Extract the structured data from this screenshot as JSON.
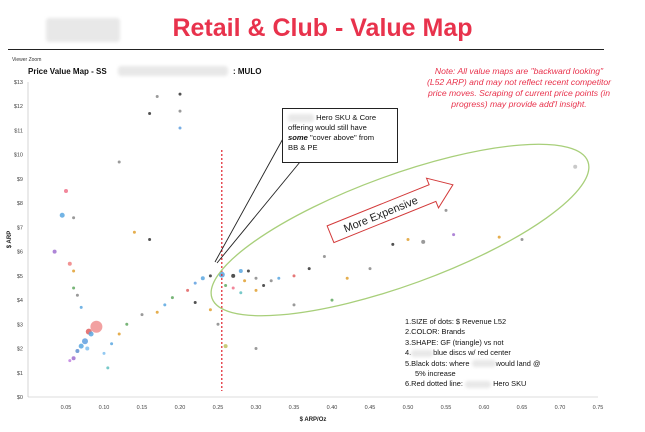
{
  "slide": {
    "title": "Retail & Club - Value Map"
  },
  "viewer": {
    "label": "Viewer Zoom"
  },
  "chart_header": {
    "title": "Price Value Map - SS",
    "subtitle": ": MULO"
  },
  "note": {
    "lines": [
      "Note: All value maps are \"backward looking\"",
      "(L52 ARP) and may not reflect recent competitor",
      "price moves. Scraping of current price points (in",
      "progress) may provide add'l insight."
    ]
  },
  "callout": {
    "lines": [
      "Hero SKU & Core",
      "offering would still have",
      "cover above\" from",
      "BB & PE"
    ],
    "emphasis": "some"
  },
  "arrow_label": "More Expensive",
  "legend": {
    "items": [
      "1.SIZE of dots: $ Revenue L52",
      "2.COLOR: Brands",
      "3.SHAPE: GF (triangle) vs not",
      "blue discs w/ red center",
      "5.Black dots: where",
      "would land @",
      "5% increase",
      "Hero SKU"
    ],
    "item4_prefix": "4.",
    "item6_prefix": "6.Red dotted line:"
  },
  "chart_data": {
    "type": "scatter",
    "xlabel": "$ ARP/Oz",
    "ylabel": "$ ARP",
    "xlim": [
      0.0,
      0.75
    ],
    "ylim": [
      0,
      13
    ],
    "x_ticks": [
      "0.05",
      "0.10",
      "0.15",
      "0.20",
      "0.25",
      "0.30",
      "0.35",
      "0.40",
      "0.45",
      "0.50",
      "0.55",
      "0.60",
      "0.65",
      "0.70",
      "0.75"
    ],
    "y_ticks": [
      "$0",
      "$1",
      "$2",
      "$3",
      "$4",
      "$5",
      "$6",
      "$7",
      "$8",
      "$9",
      "$10",
      "$11",
      "$12",
      "$13"
    ],
    "red_dotted_line_x": 0.255,
    "points": [
      {
        "x": 0.05,
        "y": 8.5,
        "r": 2,
        "color": "#f0728a"
      },
      {
        "x": 0.06,
        "y": 7.4,
        "r": 1.5,
        "color": "#888888"
      },
      {
        "x": 0.045,
        "y": 7.5,
        "r": 2.5,
        "color": "#5aa7e0"
      },
      {
        "x": 0.035,
        "y": 6.0,
        "r": 2,
        "color": "#a070d0"
      },
      {
        "x": 0.055,
        "y": 5.5,
        "r": 2,
        "color": "#f08080"
      },
      {
        "x": 0.06,
        "y": 5.2,
        "r": 1.5,
        "color": "#e0a030"
      },
      {
        "x": 0.06,
        "y": 4.5,
        "r": 1.5,
        "color": "#60a860"
      },
      {
        "x": 0.065,
        "y": 4.2,
        "r": 1.5,
        "color": "#888888"
      },
      {
        "x": 0.07,
        "y": 3.7,
        "r": 1.5,
        "color": "#5aa7e0"
      },
      {
        "x": 0.08,
        "y": 2.7,
        "r": 3,
        "color": "#e06060"
      },
      {
        "x": 0.09,
        "y": 2.9,
        "r": 6,
        "color": "#f09090"
      },
      {
        "x": 0.083,
        "y": 2.6,
        "r": 2.5,
        "color": "#5aa7e0"
      },
      {
        "x": 0.075,
        "y": 2.3,
        "r": 3,
        "color": "#60a0e0"
      },
      {
        "x": 0.07,
        "y": 2.1,
        "r": 2.5,
        "color": "#5aa7e0"
      },
      {
        "x": 0.078,
        "y": 2.0,
        "r": 2,
        "color": "#80c0f0"
      },
      {
        "x": 0.065,
        "y": 1.9,
        "r": 2,
        "color": "#6090d0"
      },
      {
        "x": 0.06,
        "y": 1.6,
        "r": 2,
        "color": "#a070d0"
      },
      {
        "x": 0.055,
        "y": 1.5,
        "r": 1.5,
        "color": "#c080e0"
      },
      {
        "x": 0.1,
        "y": 1.8,
        "r": 1.5,
        "color": "#80c0f0"
      },
      {
        "x": 0.11,
        "y": 2.2,
        "r": 1.5,
        "color": "#5aa7e0"
      },
      {
        "x": 0.12,
        "y": 2.6,
        "r": 1.5,
        "color": "#e0a030"
      },
      {
        "x": 0.105,
        "y": 1.2,
        "r": 1.5,
        "color": "#60c0c0"
      },
      {
        "x": 0.13,
        "y": 3.0,
        "r": 1.5,
        "color": "#60a860"
      },
      {
        "x": 0.15,
        "y": 3.4,
        "r": 1.5,
        "color": "#888888"
      },
      {
        "x": 0.17,
        "y": 3.5,
        "r": 1.5,
        "color": "#e0a030"
      },
      {
        "x": 0.18,
        "y": 3.8,
        "r": 1.5,
        "color": "#5aa7e0"
      },
      {
        "x": 0.19,
        "y": 4.1,
        "r": 1.5,
        "color": "#60a860"
      },
      {
        "x": 0.21,
        "y": 4.4,
        "r": 1.5,
        "color": "#e06060"
      },
      {
        "x": 0.22,
        "y": 4.7,
        "r": 1.5,
        "color": "#60a0e0"
      },
      {
        "x": 0.23,
        "y": 4.9,
        "r": 2,
        "color": "#5aa7e0"
      },
      {
        "x": 0.24,
        "y": 5.0,
        "r": 1.5,
        "color": "#333333"
      },
      {
        "x": 0.255,
        "y": 5.05,
        "r": 3,
        "color": "#5aa7e0"
      },
      {
        "x": 0.27,
        "y": 5.0,
        "r": 2,
        "color": "#333333"
      },
      {
        "x": 0.28,
        "y": 5.2,
        "r": 2,
        "color": "#5aa7e0"
      },
      {
        "x": 0.29,
        "y": 5.2,
        "r": 1.5,
        "color": "#333333"
      },
      {
        "x": 0.285,
        "y": 4.8,
        "r": 1.5,
        "color": "#e0a030"
      },
      {
        "x": 0.3,
        "y": 4.9,
        "r": 1.5,
        "color": "#888888"
      },
      {
        "x": 0.27,
        "y": 4.5,
        "r": 1.5,
        "color": "#f0728a"
      },
      {
        "x": 0.26,
        "y": 4.6,
        "r": 1.5,
        "color": "#60a860"
      },
      {
        "x": 0.28,
        "y": 4.3,
        "r": 1.5,
        "color": "#60c0c0"
      },
      {
        "x": 0.3,
        "y": 4.4,
        "r": 1.5,
        "color": "#e0a030"
      },
      {
        "x": 0.31,
        "y": 4.6,
        "r": 1.5,
        "color": "#333333"
      },
      {
        "x": 0.32,
        "y": 4.8,
        "r": 1.5,
        "color": "#888888"
      },
      {
        "x": 0.33,
        "y": 4.9,
        "r": 1.5,
        "color": "#5aa7e0"
      },
      {
        "x": 0.35,
        "y": 5.0,
        "r": 1.5,
        "color": "#e06060"
      },
      {
        "x": 0.37,
        "y": 5.3,
        "r": 1.5,
        "color": "#333333"
      },
      {
        "x": 0.39,
        "y": 5.8,
        "r": 1.5,
        "color": "#888888"
      },
      {
        "x": 0.42,
        "y": 4.9,
        "r": 1.5,
        "color": "#e0a030"
      },
      {
        "x": 0.45,
        "y": 5.3,
        "r": 1.5,
        "color": "#888888"
      },
      {
        "x": 0.48,
        "y": 6.3,
        "r": 1.5,
        "color": "#333333"
      },
      {
        "x": 0.5,
        "y": 6.5,
        "r": 1.5,
        "color": "#e0a030"
      },
      {
        "x": 0.52,
        "y": 6.4,
        "r": 2,
        "color": "#888888"
      },
      {
        "x": 0.56,
        "y": 6.7,
        "r": 1.5,
        "color": "#a070d0"
      },
      {
        "x": 0.62,
        "y": 6.6,
        "r": 1.5,
        "color": "#e0a030"
      },
      {
        "x": 0.65,
        "y": 6.5,
        "r": 1.5,
        "color": "#888888"
      },
      {
        "x": 0.72,
        "y": 9.5,
        "r": 2,
        "color": "#c0c0c0"
      },
      {
        "x": 0.5,
        "y": 7.8,
        "r": 1.5,
        "color": "#e06060"
      },
      {
        "x": 0.55,
        "y": 7.7,
        "r": 1.5,
        "color": "#888888"
      },
      {
        "x": 0.47,
        "y": 7.5,
        "r": 1.5,
        "color": "#333333"
      },
      {
        "x": 0.2,
        "y": 12.5,
        "r": 1.5,
        "color": "#333333"
      },
      {
        "x": 0.17,
        "y": 12.4,
        "r": 1.5,
        "color": "#888888"
      },
      {
        "x": 0.16,
        "y": 11.7,
        "r": 1.5,
        "color": "#333333"
      },
      {
        "x": 0.2,
        "y": 11.8,
        "r": 1.5,
        "color": "#888888"
      },
      {
        "x": 0.2,
        "y": 11.1,
        "r": 1.5,
        "color": "#60a0e0"
      },
      {
        "x": 0.12,
        "y": 9.7,
        "r": 1.5,
        "color": "#888888"
      },
      {
        "x": 0.14,
        "y": 6.8,
        "r": 1.5,
        "color": "#e0a030"
      },
      {
        "x": 0.16,
        "y": 6.5,
        "r": 1.5,
        "color": "#333333"
      },
      {
        "x": 0.25,
        "y": 3.0,
        "r": 1.5,
        "color": "#888888"
      },
      {
        "x": 0.26,
        "y": 2.1,
        "r": 2,
        "color": "#c0c060"
      },
      {
        "x": 0.3,
        "y": 2.0,
        "r": 1.5,
        "color": "#888888"
      },
      {
        "x": 0.24,
        "y": 3.6,
        "r": 1.5,
        "color": "#e0a030"
      },
      {
        "x": 0.22,
        "y": 3.9,
        "r": 1.5,
        "color": "#333333"
      },
      {
        "x": 0.35,
        "y": 3.8,
        "r": 1.5,
        "color": "#888888"
      },
      {
        "x": 0.4,
        "y": 4.0,
        "r": 1.5,
        "color": "#60a860"
      }
    ]
  }
}
